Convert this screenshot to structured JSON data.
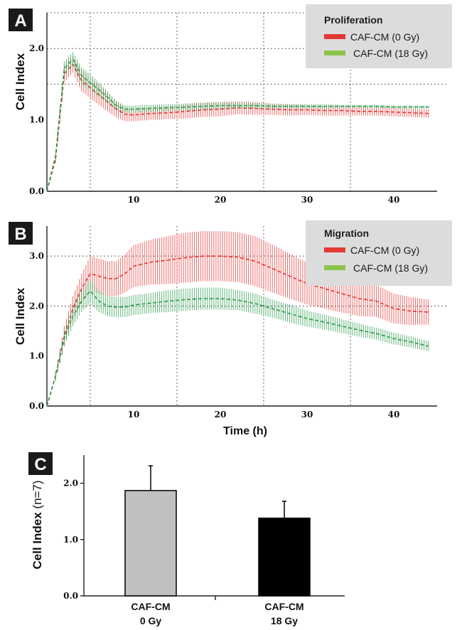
{
  "panels": {
    "a": {
      "badge": "A",
      "legend_title": "Proliferation",
      "series_labels": [
        "CAF-CM  (0 Gy)",
        "CAF-CM (18 Gy)"
      ],
      "ylabel": "Cell Index"
    },
    "b": {
      "badge": "B",
      "legend_title": "Migration",
      "series_labels": [
        "CAF-CM  (0 Gy)",
        "CAF-CM (18 Gy)"
      ],
      "ylabel": "Cell Index",
      "xlabel": "Time (h)"
    },
    "c": {
      "badge": "C",
      "ylabel_main": "Cell Index",
      "ylabel_paren": "(n=7)"
    }
  },
  "colors": {
    "red": "#e53935",
    "green": "#2e9e4f",
    "legend_green": "#8bc34a",
    "bar_0gy": "#c0c0c0",
    "bar_18gy": "#000000"
  },
  "chart_data": [
    {
      "type": "line",
      "panel": "A",
      "title": "Proliferation",
      "xlabel": "",
      "ylabel": "Cell Index",
      "xlim": [
        0,
        45
      ],
      "ylim": [
        0,
        2.5
      ],
      "x_ticks": [
        "10",
        "20",
        "30",
        "40"
      ],
      "y_ticks": [
        "0.0",
        "1.0",
        "2.0"
      ],
      "series": [
        {
          "name": "CAF-CM  (0 Gy)",
          "color": "red",
          "x": [
            0,
            1,
            2,
            3,
            4,
            5,
            6,
            7,
            8,
            9,
            10,
            12,
            14,
            16,
            18,
            20,
            22,
            24,
            26,
            28,
            30,
            32,
            34,
            36,
            38,
            40,
            42,
            44
          ],
          "y": [
            0.0,
            0.45,
            1.65,
            1.78,
            1.55,
            1.45,
            1.35,
            1.25,
            1.15,
            1.08,
            1.07,
            1.09,
            1.1,
            1.12,
            1.14,
            1.15,
            1.17,
            1.16,
            1.15,
            1.14,
            1.14,
            1.13,
            1.13,
            1.12,
            1.12,
            1.11,
            1.1,
            1.09
          ],
          "err": [
            0,
            0.05,
            0.12,
            0.12,
            0.15,
            0.15,
            0.14,
            0.13,
            0.12,
            0.1,
            0.09,
            0.09,
            0.09,
            0.1,
            0.1,
            0.1,
            0.09,
            0.09,
            0.08,
            0.08,
            0.07,
            0.07,
            0.07,
            0.06,
            0.06,
            0.06,
            0.06,
            0.06
          ]
        },
        {
          "name": "CAF-CM (18 Gy)",
          "color": "green",
          "x": [
            0,
            1,
            2,
            3,
            4,
            5,
            6,
            7,
            8,
            9,
            10,
            12,
            14,
            16,
            18,
            20,
            22,
            24,
            26,
            28,
            30,
            32,
            34,
            36,
            38,
            40,
            42,
            44
          ],
          "y": [
            0.0,
            0.5,
            1.72,
            1.85,
            1.62,
            1.52,
            1.42,
            1.32,
            1.2,
            1.15,
            1.15,
            1.16,
            1.17,
            1.18,
            1.19,
            1.2,
            1.2,
            1.2,
            1.19,
            1.19,
            1.19,
            1.19,
            1.19,
            1.19,
            1.19,
            1.18,
            1.18,
            1.18
          ],
          "err": [
            0,
            0.05,
            0.1,
            0.1,
            0.12,
            0.12,
            0.1,
            0.08,
            0.06,
            0.05,
            0.05,
            0.05,
            0.05,
            0.05,
            0.05,
            0.05,
            0.04,
            0.04,
            0.03,
            0.03,
            0.03,
            0.03,
            0.02,
            0.02,
            0.02,
            0.02,
            0.02,
            0.02
          ]
        }
      ]
    },
    {
      "type": "line",
      "panel": "B",
      "title": "Migration",
      "xlabel": "Time (h)",
      "ylabel": "Cell Index",
      "xlim": [
        0,
        45
      ],
      "ylim": [
        0,
        3.6
      ],
      "x_ticks": [
        "10",
        "20",
        "30",
        "40"
      ],
      "y_ticks": [
        "0.0",
        "1.0",
        "2.0",
        "3.0"
      ],
      "series": [
        {
          "name": "CAF-CM  (0 Gy)",
          "color": "red",
          "x": [
            0,
            1,
            2,
            3,
            4,
            5,
            6,
            7,
            8,
            9,
            10,
            12,
            14,
            16,
            18,
            20,
            22,
            24,
            26,
            28,
            30,
            32,
            34,
            36,
            38,
            40,
            42,
            44
          ],
          "y": [
            0.0,
            0.6,
            1.4,
            1.95,
            2.35,
            2.65,
            2.6,
            2.55,
            2.55,
            2.65,
            2.8,
            2.88,
            2.92,
            2.97,
            3.0,
            3.0,
            2.98,
            2.9,
            2.75,
            2.6,
            2.45,
            2.35,
            2.25,
            2.15,
            2.1,
            1.95,
            1.9,
            1.88
          ],
          "err": [
            0,
            0.1,
            0.2,
            0.25,
            0.3,
            0.35,
            0.35,
            0.35,
            0.35,
            0.38,
            0.42,
            0.45,
            0.48,
            0.5,
            0.5,
            0.5,
            0.5,
            0.5,
            0.48,
            0.45,
            0.42,
            0.4,
            0.38,
            0.35,
            0.32,
            0.3,
            0.28,
            0.25
          ]
        },
        {
          "name": "CAF-CM (18 Gy)",
          "color": "green",
          "x": [
            0,
            1,
            2,
            3,
            4,
            5,
            6,
            7,
            8,
            9,
            10,
            12,
            14,
            16,
            18,
            20,
            22,
            24,
            26,
            28,
            30,
            32,
            34,
            36,
            38,
            40,
            42,
            44
          ],
          "y": [
            0.0,
            0.6,
            1.35,
            1.8,
            2.1,
            2.3,
            2.1,
            2.0,
            1.98,
            1.98,
            2.02,
            2.06,
            2.1,
            2.13,
            2.15,
            2.15,
            2.12,
            2.05,
            1.95,
            1.85,
            1.75,
            1.68,
            1.6,
            1.52,
            1.45,
            1.35,
            1.28,
            1.2
          ],
          "err": [
            0,
            0.08,
            0.15,
            0.2,
            0.22,
            0.25,
            0.22,
            0.2,
            0.2,
            0.2,
            0.2,
            0.2,
            0.22,
            0.22,
            0.22,
            0.22,
            0.2,
            0.2,
            0.18,
            0.18,
            0.16,
            0.15,
            0.14,
            0.13,
            0.12,
            0.12,
            0.11,
            0.1
          ]
        }
      ]
    },
    {
      "type": "bar",
      "panel": "C",
      "ylabel": "Cell Index (n=7)",
      "ylim": [
        0,
        2.5
      ],
      "y_ticks": [
        "0.0",
        "1.0",
        "2.0"
      ],
      "categories": [
        [
          "CAF-CM",
          "0 Gy"
        ],
        [
          "CAF-CM",
          "18 Gy"
        ]
      ],
      "values": [
        1.87,
        1.38
      ],
      "errors": [
        0.44,
        0.3
      ],
      "bar_colors": [
        "bar_0gy",
        "bar_18gy"
      ]
    }
  ]
}
